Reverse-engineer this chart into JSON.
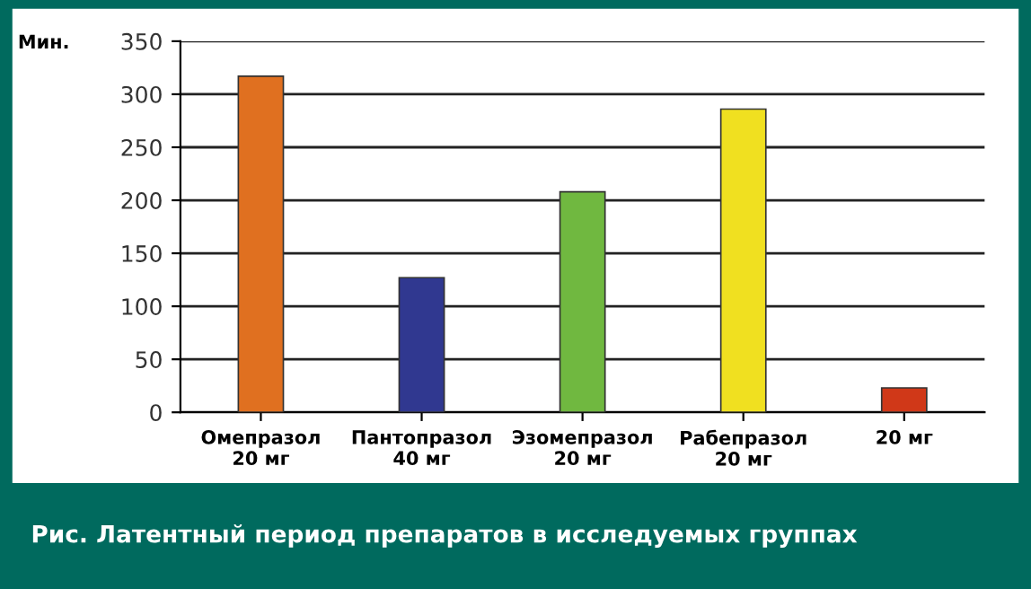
{
  "chart_data": {
    "type": "bar",
    "title": "Рис. Латентный период препаратов в исследуемых группах",
    "ylabel": "Мин.",
    "categories": [
      "Омепразол\n20 мг",
      "Пантопразол\n40 мг",
      "Эзомепразол\n20 мг",
      "Рабепразол\n20 мг",
      "20 мг"
    ],
    "values": [
      317,
      127,
      208,
      286,
      23
    ],
    "colors": [
      "#e07020",
      "#303890",
      "#70b840",
      "#f0e020",
      "#d03818"
    ],
    "ylim": [
      0,
      350
    ],
    "yticks": [
      0,
      50,
      100,
      150,
      200,
      250,
      300,
      350
    ],
    "grid": "y"
  }
}
